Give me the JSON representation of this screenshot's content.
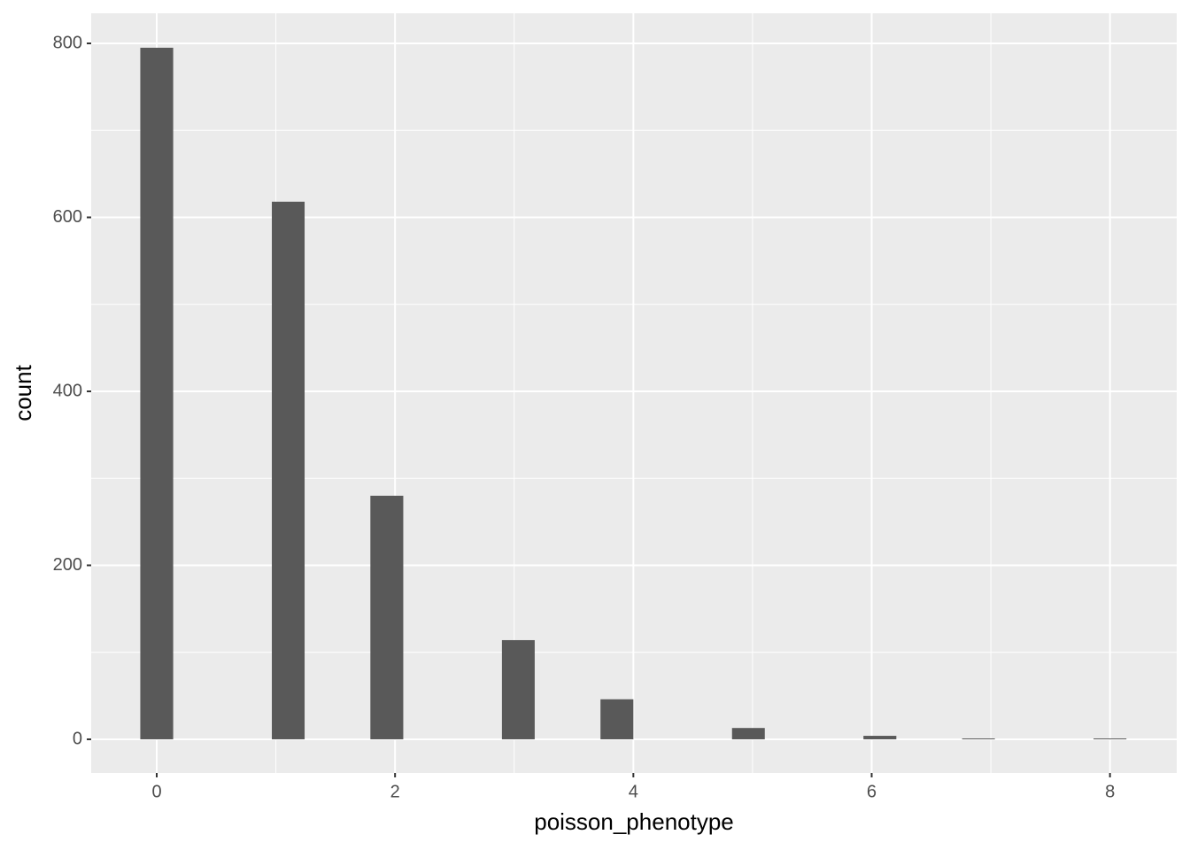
{
  "chart_data": {
    "type": "histogram",
    "x_label": "poisson_phenotype",
    "y_label": "count",
    "bins": [
      -0.138,
      0.138,
      0.414,
      0.69,
      0.966,
      1.241,
      1.517,
      1.793,
      2.069,
      2.345,
      2.621,
      2.897,
      3.172,
      3.448,
      3.724,
      4.0,
      4.276,
      4.552,
      4.828,
      5.103,
      5.379,
      5.655,
      5.931,
      6.207,
      6.483,
      6.759,
      7.034,
      7.31,
      7.586,
      7.862,
      8.138
    ],
    "values": [
      795,
      0,
      0,
      0,
      618,
      0,
      0,
      280,
      0,
      0,
      0,
      114,
      0,
      0,
      46,
      0,
      0,
      0,
      13,
      0,
      0,
      0,
      4,
      0,
      0,
      1,
      0,
      0,
      0,
      1
    ],
    "color": "#595959",
    "xlim": [
      -0.55,
      8.56
    ],
    "xticks": [
      0,
      2,
      4,
      6,
      8
    ],
    "ylim": [
      -38.7,
      834.6
    ],
    "yticks": [
      0,
      200,
      400,
      600,
      800
    ],
    "grid": true
  }
}
